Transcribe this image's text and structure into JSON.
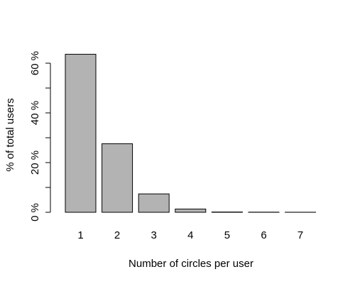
{
  "chart_data": {
    "type": "bar",
    "title": "",
    "xlabel": "Number of circles per user",
    "ylabel": "% of total users",
    "categories": [
      "1",
      "2",
      "3",
      "4",
      "5",
      "6",
      "7"
    ],
    "values": [
      63.6,
      27.6,
      7.4,
      1.3,
      0.1,
      0.05,
      0.02
    ],
    "ylim": [
      0,
      60
    ],
    "y_ticks": [
      0,
      10,
      20,
      30,
      40,
      50,
      60
    ],
    "y_tick_labels": [
      {
        "value": 0,
        "label": "0 %"
      },
      {
        "value": 20,
        "label": "20 %"
      },
      {
        "value": 40,
        "label": "40 %"
      },
      {
        "value": 60,
        "label": "60 %"
      }
    ],
    "grid": false,
    "legend": "none",
    "colors": {
      "bar_fill": "#b3b3b3",
      "bar_stroke": "#000000",
      "axis": "#000000"
    }
  }
}
